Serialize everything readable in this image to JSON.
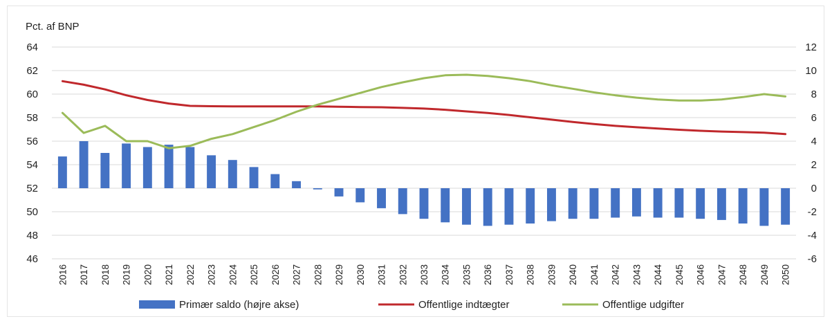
{
  "chart_data": {
    "type": "bar+line",
    "unit_label": "Pct. af BNP",
    "x": [
      "2016",
      "2017",
      "2018",
      "2019",
      "2020",
      "2021",
      "2022",
      "2023",
      "2024",
      "2025",
      "2026",
      "2027",
      "2028",
      "2029",
      "2030",
      "2031",
      "2032",
      "2033",
      "2034",
      "2035",
      "2036",
      "2037",
      "2038",
      "2039",
      "2040",
      "2041",
      "2042",
      "2043",
      "2044",
      "2045",
      "2046",
      "2047",
      "2048",
      "2049",
      "2050"
    ],
    "left_axis": {
      "ylim": [
        46,
        64
      ],
      "ticks": [
        46,
        48,
        50,
        52,
        54,
        56,
        58,
        60,
        62,
        64
      ]
    },
    "right_axis": {
      "ylim": [
        -6,
        12
      ],
      "ticks": [
        -6,
        -4,
        -2,
        0,
        2,
        4,
        6,
        8,
        10,
        12
      ]
    },
    "grid": true,
    "legend_position": "bottom",
    "series": [
      {
        "name": "Primær saldo (højre akse)",
        "type": "bar",
        "axis": "right",
        "color": "#4472c4",
        "values": [
          2.7,
          4.0,
          3.0,
          3.8,
          3.5,
          3.7,
          3.5,
          2.8,
          2.4,
          1.8,
          1.2,
          0.6,
          -0.1,
          -0.7,
          -1.2,
          -1.7,
          -2.2,
          -2.6,
          -2.9,
          -3.1,
          -3.2,
          -3.1,
          -3.0,
          -2.8,
          -2.6,
          -2.6,
          -2.5,
          -2.4,
          -2.5,
          -2.5,
          -2.6,
          -2.7,
          -3.0,
          -3.2,
          -3.1
        ]
      },
      {
        "name": "Offentlige indtægter",
        "type": "line",
        "axis": "left",
        "color": "#c0282c",
        "values": [
          61.1,
          60.8,
          60.4,
          59.9,
          59.5,
          59.2,
          59.0,
          58.97,
          58.95,
          58.95,
          58.95,
          58.95,
          58.95,
          58.93,
          58.9,
          58.88,
          58.83,
          58.77,
          58.67,
          58.53,
          58.4,
          58.23,
          58.03,
          57.83,
          57.63,
          57.45,
          57.3,
          57.18,
          57.07,
          56.97,
          56.88,
          56.82,
          56.77,
          56.72,
          56.6
        ]
      },
      {
        "name": "Offentlige udgifter",
        "type": "line",
        "axis": "left",
        "color": "#9bbb59",
        "values": [
          58.4,
          56.7,
          57.3,
          56.0,
          56.0,
          55.4,
          55.6,
          56.2,
          56.6,
          57.2,
          57.8,
          58.5,
          59.1,
          59.6,
          60.1,
          60.6,
          61.0,
          61.35,
          61.6,
          61.65,
          61.55,
          61.35,
          61.1,
          60.75,
          60.45,
          60.15,
          59.9,
          59.7,
          59.55,
          59.45,
          59.45,
          59.55,
          59.75,
          60.0,
          59.8
        ]
      }
    ]
  }
}
